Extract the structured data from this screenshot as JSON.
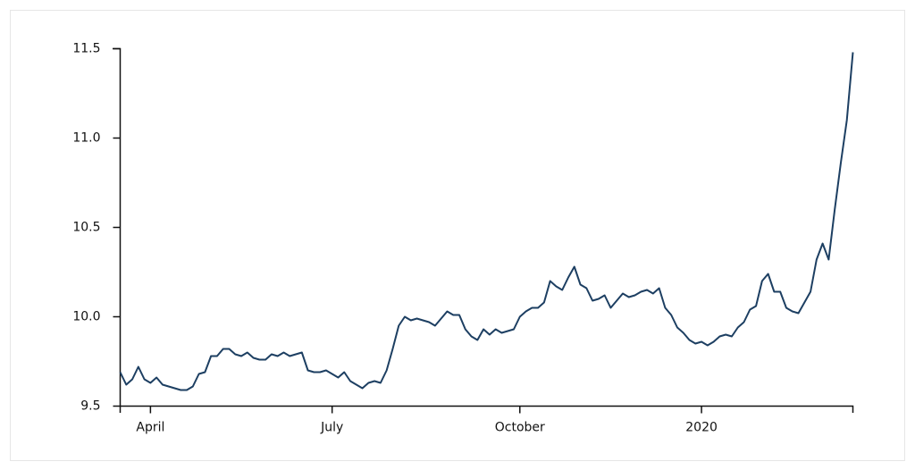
{
  "chart_data": {
    "type": "line",
    "categories": [
      null,
      null,
      null,
      null,
      null,
      "April",
      null,
      null,
      null,
      null,
      null,
      null,
      null,
      null,
      null,
      null,
      null,
      null,
      null,
      null,
      null,
      null,
      null,
      null,
      null,
      null,
      null,
      null,
      null,
      null,
      null,
      null,
      null,
      null,
      null,
      "July",
      null,
      null,
      null,
      null,
      null,
      null,
      null,
      null,
      null,
      null,
      null,
      null,
      null,
      null,
      null,
      null,
      null,
      null,
      null,
      null,
      null,
      null,
      null,
      null,
      null,
      null,
      null,
      null,
      null,
      null,
      "October",
      null,
      null,
      null,
      null,
      null,
      null,
      null,
      null,
      null,
      null,
      null,
      null,
      null,
      null,
      null,
      null,
      null,
      null,
      null,
      null,
      null,
      null,
      null,
      null,
      null,
      null,
      null,
      null,
      null,
      "2020",
      null,
      null,
      null,
      null,
      null,
      null,
      null,
      null,
      null,
      null,
      null,
      null,
      null,
      null,
      null,
      null,
      null,
      null,
      null,
      null,
      null,
      null,
      null,
      null,
      null
    ],
    "series": [
      {
        "color": "#1d3f62",
        "values": [
          9.69,
          9.62,
          9.65,
          9.72,
          9.65,
          9.63,
          9.66,
          9.62,
          9.61,
          9.6,
          9.59,
          9.59,
          9.61,
          9.68,
          9.69,
          9.78,
          9.78,
          9.82,
          9.82,
          9.79,
          9.78,
          9.8,
          9.77,
          9.76,
          9.76,
          9.79,
          9.78,
          9.8,
          9.78,
          9.79,
          9.8,
          9.7,
          9.69,
          9.69,
          9.7,
          9.68,
          9.66,
          9.69,
          9.64,
          9.62,
          9.6,
          9.63,
          9.64,
          9.63,
          9.7,
          9.82,
          9.95,
          10.0,
          9.98,
          9.99,
          9.98,
          9.97,
          9.95,
          9.99,
          10.03,
          10.01,
          10.01,
          9.93,
          9.89,
          9.87,
          9.93,
          9.9,
          9.93,
          9.91,
          9.92,
          9.93,
          10.0,
          10.03,
          10.05,
          10.05,
          10.08,
          10.2,
          10.17,
          10.15,
          10.22,
          10.28,
          10.18,
          10.16,
          10.09,
          10.1,
          10.12,
          10.05,
          10.09,
          10.13,
          10.11,
          10.12,
          10.14,
          10.15,
          10.13,
          10.16,
          10.05,
          10.01,
          9.94,
          9.91,
          9.87,
          9.85,
          9.86,
          9.84,
          9.86,
          9.89,
          9.9,
          9.89,
          9.94,
          9.97,
          10.04,
          10.06,
          10.2,
          10.24,
          10.14,
          10.14,
          10.05,
          10.03,
          10.02,
          10.08,
          10.14,
          10.32,
          10.41,
          10.32,
          10.6,
          10.86,
          11.1,
          11.48
        ]
      }
    ],
    "ylim": [
      9.5,
      11.5
    ],
    "yticks": [
      9.5,
      {
        "value": 10,
        "label": "10.0"
      },
      10.5,
      {
        "value": 11,
        "label": "11.0"
      },
      11.5
    ]
  }
}
